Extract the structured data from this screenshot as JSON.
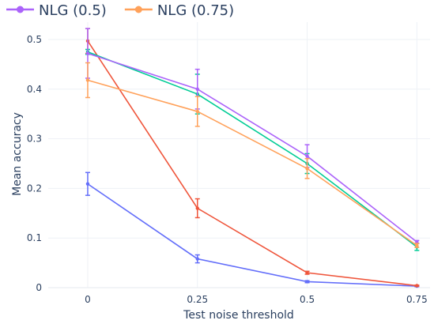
{
  "chart_data": {
    "type": "line",
    "xlabel": "Test noise threshold",
    "ylabel": "Mean accuracy",
    "x": [
      0,
      0.25,
      0.5,
      0.75
    ],
    "x_tick_labels": [
      "0",
      "0.25",
      "0.5",
      "0.75"
    ],
    "y_ticks": [
      0,
      0.1,
      0.2,
      0.3,
      0.4,
      0.5
    ],
    "y_tick_labels": [
      "0",
      "0.1",
      "0.2",
      "0.3",
      "0.4",
      "0.5"
    ],
    "xlim": [
      -0.09,
      0.78
    ],
    "ylim": [
      0,
      0.535
    ],
    "grid": true,
    "legend_position": "top-left",
    "series": [
      {
        "name": "",
        "color": "#636efa",
        "values": [
          0.209,
          0.058,
          0.012,
          0.003
        ],
        "errors": [
          0.023,
          0.008,
          0.002,
          0.001
        ]
      },
      {
        "name": "",
        "color": "#ef553b",
        "values": [
          0.497,
          0.16,
          0.03,
          0.004
        ],
        "errors": [
          0.025,
          0.019,
          0.003,
          0.001
        ]
      },
      {
        "name": "",
        "color": "#00cc96",
        "values": [
          0.475,
          0.39,
          0.25,
          0.082
        ],
        "errors": [
          0.005,
          0.04,
          0.02,
          0.007
        ]
      },
      {
        "name": "NLG (0.5)",
        "color": "#ab63fa",
        "values": [
          0.472,
          0.4,
          0.265,
          0.092
        ],
        "errors": [
          0.05,
          0.04,
          0.023,
          0.003
        ]
      },
      {
        "name": "NLG (0.75)",
        "color": "#ffa15a",
        "values": [
          0.418,
          0.355,
          0.24,
          0.085
        ],
        "errors": [
          0.035,
          0.03,
          0.02,
          0.004
        ]
      }
    ]
  }
}
